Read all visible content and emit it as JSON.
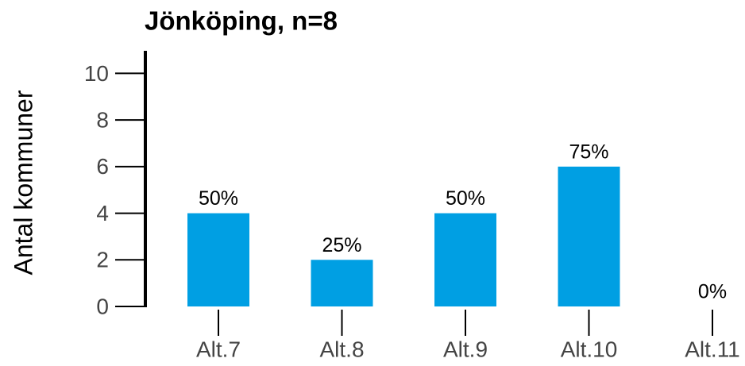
{
  "chart_data": {
    "type": "bar",
    "title": "Jönköping, n=8",
    "ylabel": "Antal kommuner",
    "categories": [
      "Alt.7",
      "Alt.8",
      "Alt.9",
      "Alt.10",
      "Alt.11"
    ],
    "values": [
      4,
      2,
      4,
      6,
      0
    ],
    "value_labels": [
      "50%",
      "25%",
      "50%",
      "75%",
      "0%"
    ],
    "color": "#009fe3",
    "ylim": [
      0,
      10.9
    ],
    "yticks": [
      0,
      2,
      4,
      6,
      8,
      10
    ],
    "grid": false
  }
}
